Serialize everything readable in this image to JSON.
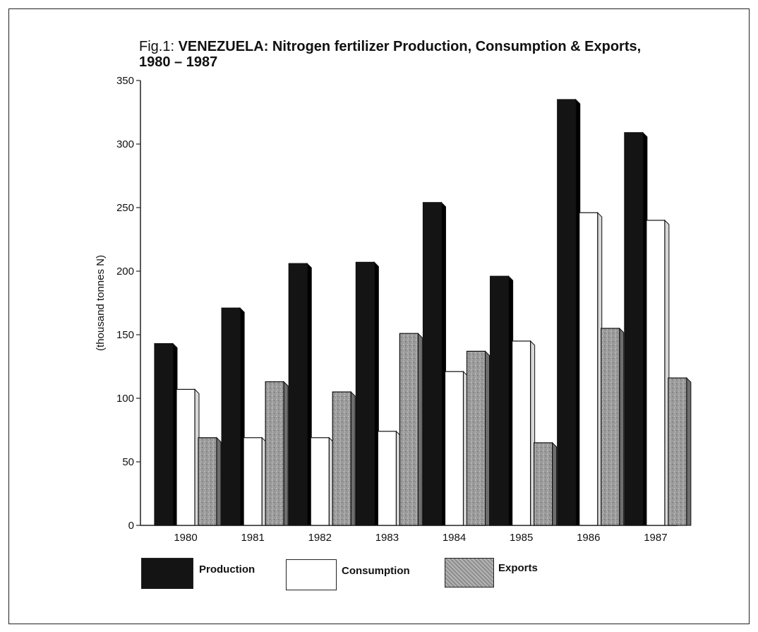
{
  "title": {
    "prefix": "Fig.1: ",
    "bold": "VENEZUELA: Nitrogen fertilizer Production, Consumption & Exports,",
    "line2": "1980 – 1987"
  },
  "colors": {
    "production": "#141414",
    "consumption": "#ffffff",
    "exports": "#9a9a9a",
    "frame": "#222222"
  },
  "legend": [
    {
      "key": "production",
      "label": "Production"
    },
    {
      "key": "consumption",
      "label": "Consumption"
    },
    {
      "key": "exports",
      "label": "Exports"
    }
  ],
  "chart_data": {
    "type": "bar",
    "title": "VENEZUELA: Nitrogen fertilizer Production, Consumption & Exports, 1980 – 1987",
    "xlabel": "",
    "ylabel": "(thousand tonnes N)",
    "ylim": [
      0,
      350
    ],
    "yticks": [
      0,
      50,
      100,
      150,
      200,
      250,
      300,
      350
    ],
    "categories": [
      "1980",
      "1981",
      "1982",
      "1983",
      "1984",
      "1985",
      "1986",
      "1987"
    ],
    "series": [
      {
        "name": "Production",
        "values": [
          143,
          171,
          206,
          207,
          254,
          196,
          335,
          309
        ]
      },
      {
        "name": "Consumption",
        "values": [
          107,
          69,
          69,
          74,
          121,
          145,
          246,
          240
        ]
      },
      {
        "name": "Exports",
        "values": [
          69,
          113,
          105,
          151,
          137,
          65,
          155,
          116
        ]
      }
    ],
    "grid": false,
    "legend_position": "bottom"
  }
}
